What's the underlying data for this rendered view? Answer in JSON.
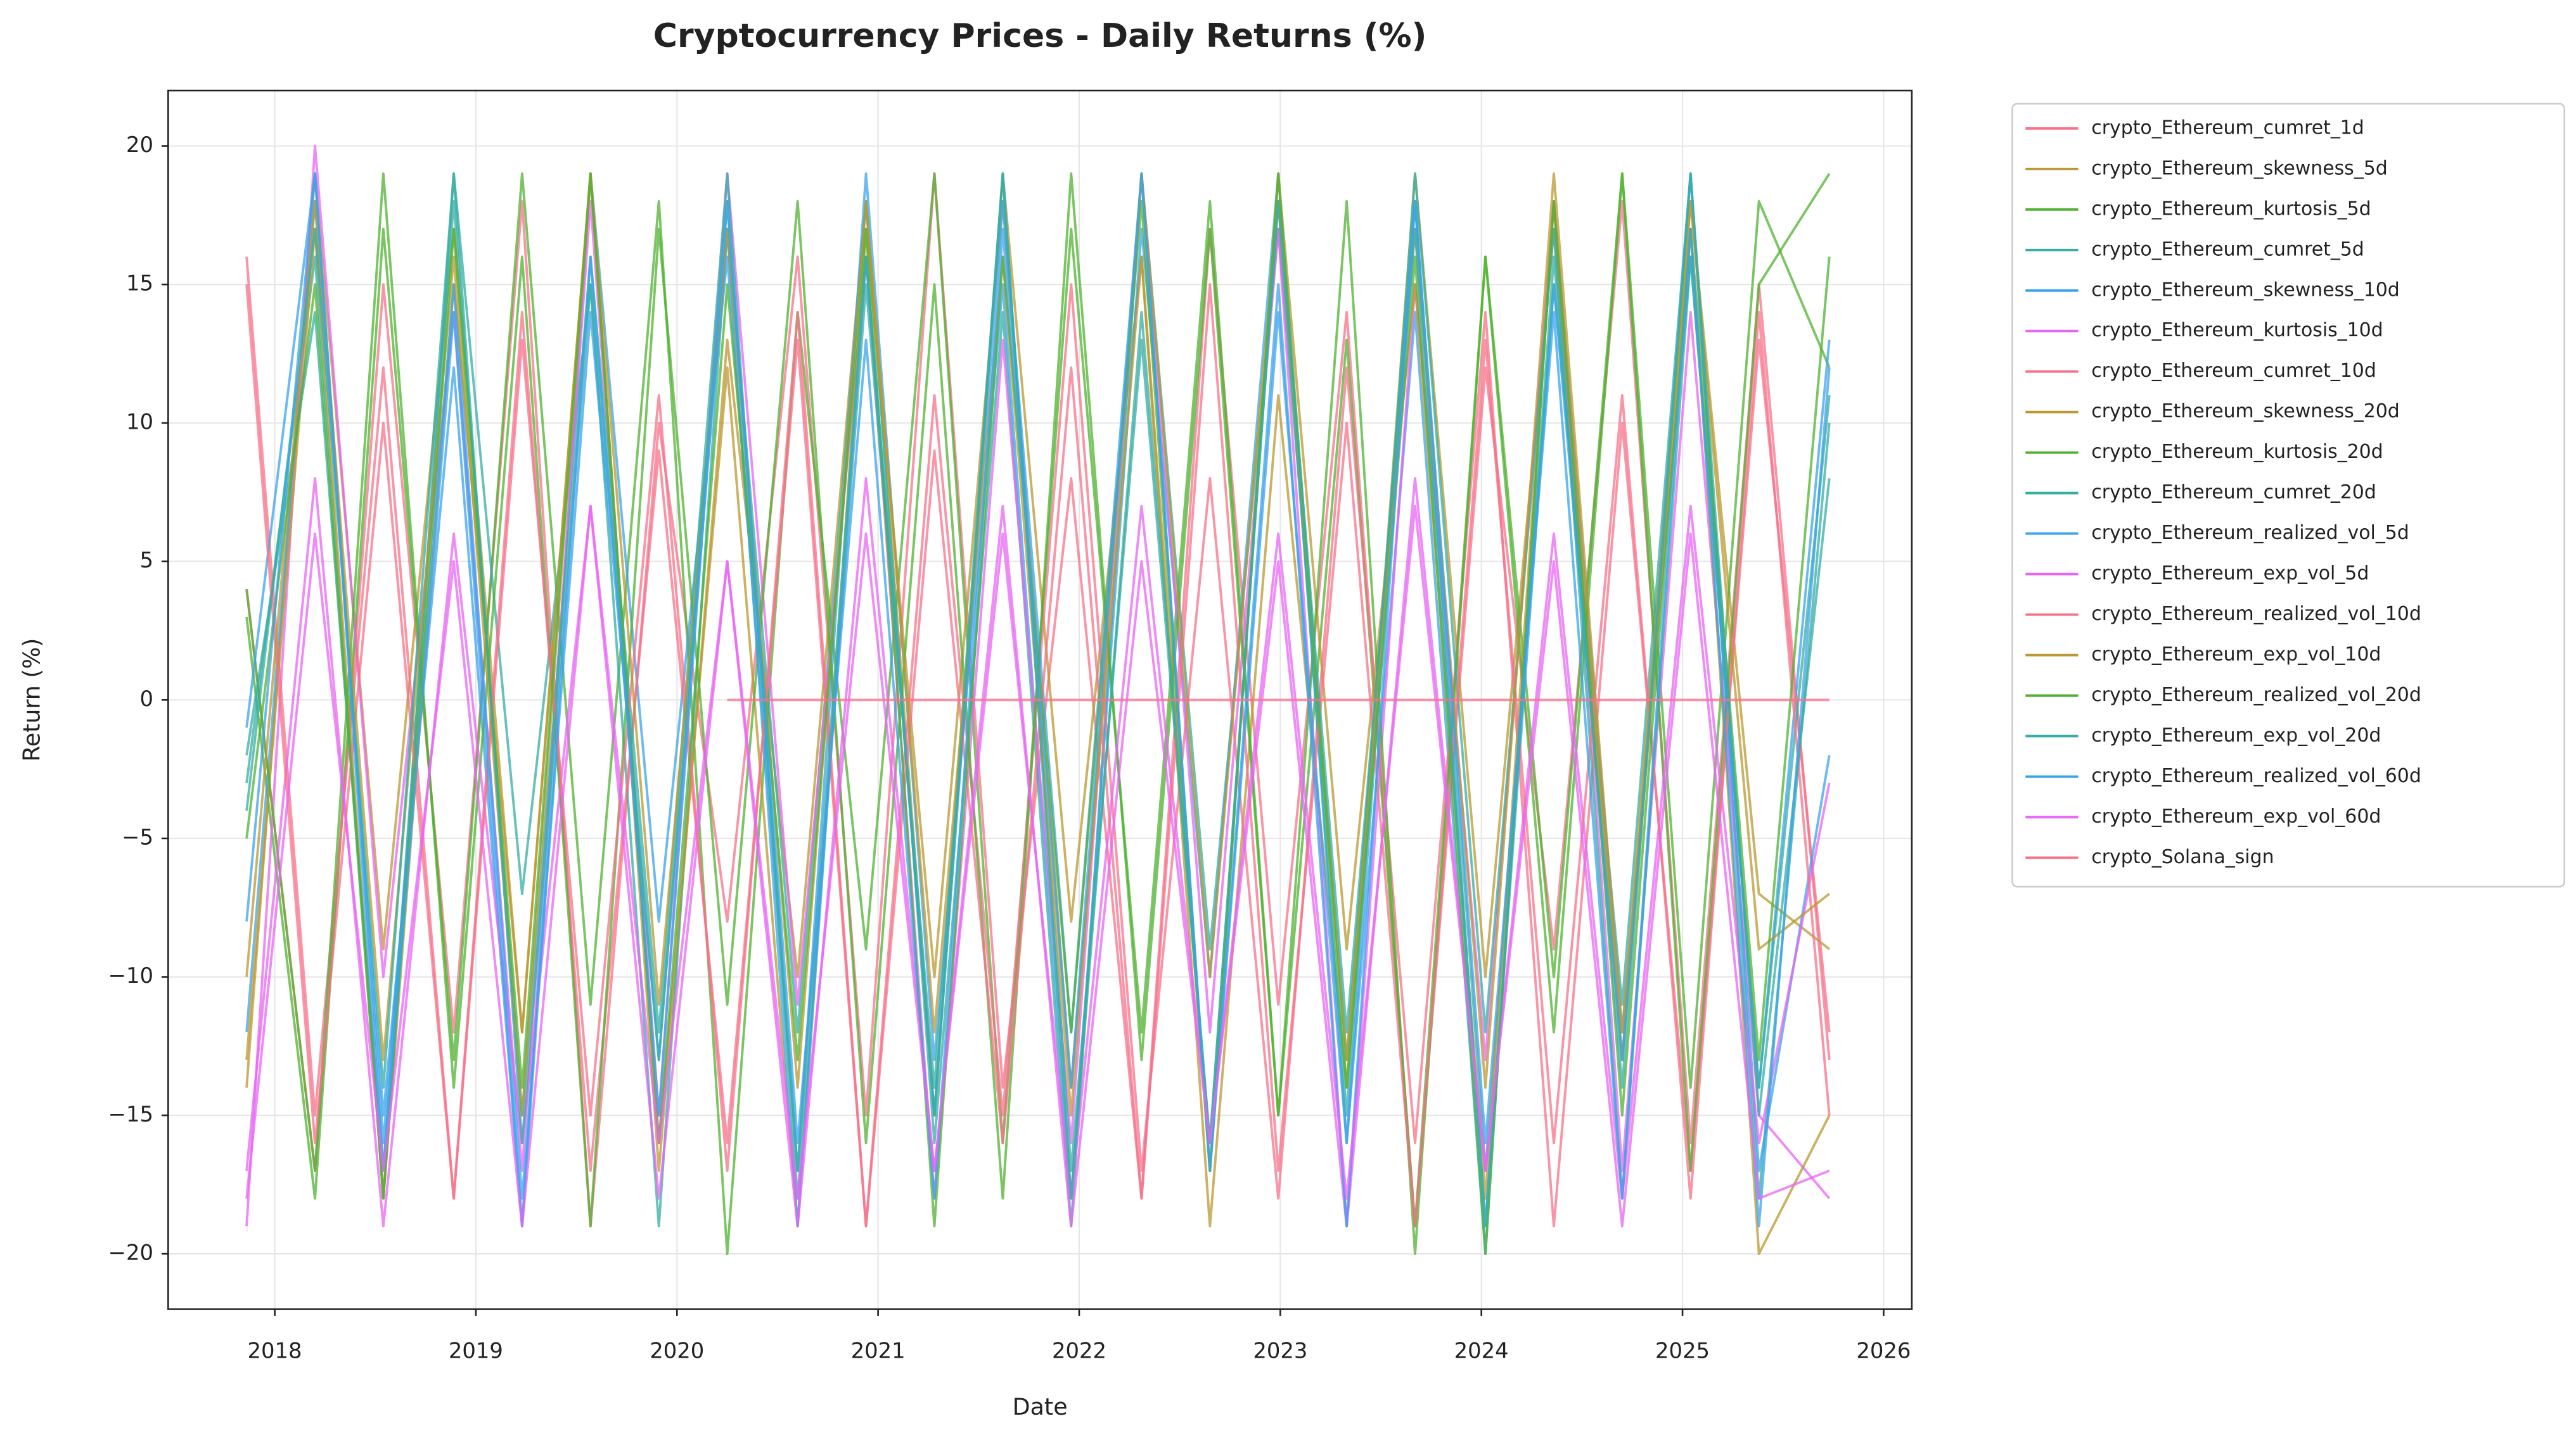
{
  "chart_data": {
    "type": "line",
    "title": "Cryptocurrency Prices - Daily Returns (%)",
    "x_label": "Date",
    "y_label": "Return (%)",
    "xlim": [
      2017.47,
      2026.14
    ],
    "ylim": [
      -22,
      22
    ],
    "xticks": [
      2018,
      2019,
      2020,
      2021,
      2022,
      2023,
      2024,
      2025,
      2026
    ],
    "yticks": [
      {
        "value": -20,
        "label": "−20"
      },
      {
        "value": -15,
        "label": "−15"
      },
      {
        "value": -10,
        "label": "−10"
      },
      {
        "value": -5,
        "label": "−5"
      },
      0,
      5,
      10,
      15,
      20
    ],
    "grid": true,
    "legend": "outside-right",
    "x": [
      2017.86,
      2018.2,
      2018.54,
      2018.89,
      2019.23,
      2019.57,
      2019.91,
      2020.25,
      2020.6,
      2020.94,
      2021.28,
      2021.62,
      2021.96,
      2022.31,
      2022.65,
      2022.99,
      2023.33,
      2023.67,
      2024.02,
      2024.36,
      2024.7,
      2025.04,
      2025.38,
      2025.73
    ],
    "series": [
      {
        "name": "crypto_Ethereum_cumret_1d",
        "color": "#f77189",
        "values": [
          4,
          -17,
          15,
          -12,
          18,
          -19,
          10,
          -8,
          16,
          -15,
          19,
          -14,
          8,
          -18,
          17,
          -11,
          14,
          -19,
          12,
          -9,
          18,
          -16,
          15,
          -13
        ]
      },
      {
        "name": "crypto_Ethereum_skewness_5d",
        "color": "#bb9832",
        "values": [
          -14,
          19,
          -9,
          17,
          -12,
          19,
          -17,
          13,
          -10,
          18,
          -15,
          19,
          -8,
          16,
          -19,
          11,
          -14,
          19,
          -10,
          17,
          -13,
          18,
          -7,
          -9
        ]
      },
      {
        "name": "crypto_Ethereum_kurtosis_5d",
        "color": "#50b131",
        "values": [
          3,
          -18,
          17,
          -13,
          19,
          -11,
          18,
          -20,
          14,
          -9,
          19,
          -16,
          17,
          -12,
          18,
          -15,
          13,
          -19,
          16,
          -10,
          19,
          -14,
          18,
          12
        ]
      },
      {
        "name": "crypto_Ethereum_cumret_5d",
        "color": "#36ada4",
        "values": [
          -3,
          16,
          -18,
          19,
          -7,
          15,
          -19,
          17,
          -12,
          18,
          -16,
          14,
          -19,
          19,
          -9,
          17,
          -13,
          18,
          -17,
          15,
          -11,
          19,
          -18,
          10
        ]
      },
      {
        "name": "crypto_Ethereum_skewness_10d",
        "color": "#3ba3ec",
        "values": [
          -12,
          18,
          -15,
          12,
          -19,
          19,
          -8,
          16,
          -17,
          19,
          -13,
          15,
          -18,
          17,
          -10,
          19,
          -16,
          14,
          -20,
          18,
          -12,
          16,
          -14,
          13
        ]
      },
      {
        "name": "crypto_Ethereum_kurtosis_10d",
        "color": "#e866f4",
        "values": [
          -19,
          20,
          -10,
          14,
          -17,
          18,
          -15,
          19,
          -11,
          16,
          -18,
          13,
          -16,
          19,
          -12,
          17,
          -19,
          15,
          -13,
          18,
          -17,
          14,
          -15,
          -18
        ]
      },
      {
        "name": "crypto_Ethereum_cumret_10d",
        "color": "#f77189",
        "values": [
          16,
          -15,
          12,
          -18,
          14,
          -17,
          9,
          -16,
          13,
          -19,
          11,
          -15,
          15,
          -17,
          8,
          -18,
          12,
          -16,
          14,
          -19,
          10,
          -17,
          13,
          -12
        ]
      },
      {
        "name": "crypto_Ethereum_skewness_20d",
        "color": "#bb9832",
        "values": [
          -13,
          17,
          -18,
          15,
          -12,
          19,
          -16,
          12,
          -19,
          17,
          -10,
          18,
          -14,
          16,
          -17,
          19,
          -9,
          15,
          -18,
          18,
          -13,
          17,
          -20,
          -15
        ]
      },
      {
        "name": "crypto_Ethereum_kurtosis_20d",
        "color": "#50b131",
        "values": [
          4,
          -17,
          19,
          -14,
          16,
          -19,
          17,
          -11,
          18,
          -16,
          15,
          -18,
          19,
          -13,
          17,
          -15,
          18,
          -20,
          16,
          -12,
          19,
          -17,
          15,
          19
        ]
      },
      {
        "name": "crypto_Ethereum_cumret_20d",
        "color": "#36ada4",
        "values": [
          -2,
          14,
          -17,
          18,
          -15,
          16,
          -12,
          19,
          -18,
          15,
          -14,
          19,
          -17,
          13,
          -16,
          18,
          -15,
          19,
          -12,
          17,
          -18,
          16,
          -14,
          11
        ]
      },
      {
        "name": "crypto_Ethereum_realized_vol_5d",
        "color": "#3ba3ec",
        "values": [
          -1,
          19,
          -16,
          15,
          -18,
          14,
          -13,
          17,
          -19,
          16,
          -15,
          18,
          -12,
          19,
          -17,
          14,
          -16,
          18,
          -19,
          15,
          -13,
          19,
          -17,
          -2
        ]
      },
      {
        "name": "crypto_Ethereum_exp_vol_5d",
        "color": "#e866f4",
        "values": [
          -17,
          8,
          -19,
          6,
          -16,
          7,
          -18,
          5,
          -19,
          8,
          -17,
          6,
          -18,
          7,
          -16,
          5,
          -19,
          8,
          -17,
          6,
          -18,
          7,
          -16,
          -3
        ]
      },
      {
        "name": "crypto_Ethereum_realized_vol_10d",
        "color": "#f77189",
        "values": [
          15,
          -16,
          10,
          -18,
          13,
          -15,
          11,
          -17,
          14,
          -19,
          9,
          -16,
          12,
          -18,
          15,
          -17,
          10,
          -19,
          13,
          -16,
          11,
          -18,
          14,
          -15
        ]
      },
      {
        "name": "crypto_Ethereum_exp_vol_10d",
        "color": "#bb9832",
        "values": [
          -10,
          18,
          -13,
          16,
          -15,
          19,
          -11,
          17,
          -14,
          18,
          -12,
          16,
          -15,
          19,
          -10,
          18,
          -13,
          17,
          -14,
          19,
          -12,
          18,
          -9,
          -7
        ]
      },
      {
        "name": "crypto_Ethereum_realized_vol_20d",
        "color": "#50b131",
        "values": [
          -5,
          15,
          -18,
          17,
          -14,
          19,
          -16,
          15,
          -13,
          17,
          -19,
          16,
          -12,
          18,
          -17,
          19,
          -14,
          16,
          -20,
          18,
          -15,
          17,
          -13,
          16
        ]
      },
      {
        "name": "crypto_Ethereum_exp_vol_20d",
        "color": "#36ada4",
        "values": [
          -4,
          17,
          -14,
          19,
          -16,
          15,
          -13,
          18,
          -17,
          16,
          -15,
          19,
          -18,
          14,
          -16,
          18,
          -12,
          17,
          -19,
          16,
          -14,
          19,
          -15,
          8
        ]
      },
      {
        "name": "crypto_Ethereum_realized_vol_60d",
        "color": "#3ba3ec",
        "values": [
          -8,
          19,
          -17,
          14,
          -19,
          16,
          -15,
          18,
          -16,
          13,
          -18,
          17,
          -14,
          19,
          -17,
          15,
          -19,
          18,
          -16,
          14,
          -18,
          17,
          -19,
          12
        ]
      },
      {
        "name": "crypto_Ethereum_exp_vol_60d",
        "color": "#e866f4",
        "values": [
          -18,
          6,
          -17,
          5,
          -19,
          7,
          -16,
          5,
          -18,
          6,
          -17,
          7,
          -19,
          5,
          -16,
          6,
          -18,
          7,
          -17,
          5,
          -19,
          6,
          -18,
          -17
        ]
      },
      {
        "name": "crypto_Solana_sign",
        "color": "#f77189",
        "values": [
          null,
          null,
          null,
          null,
          null,
          null,
          null,
          0,
          0,
          0,
          0,
          0,
          0,
          0,
          0,
          0,
          0,
          0,
          0,
          0,
          0,
          0,
          0,
          0
        ]
      }
    ]
  }
}
